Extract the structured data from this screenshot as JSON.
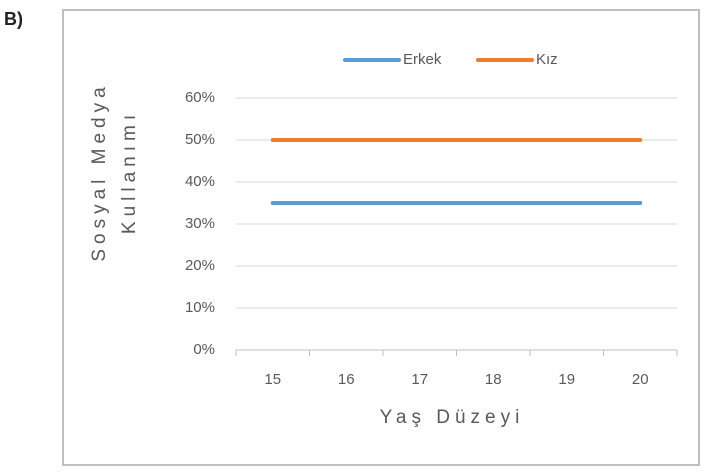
{
  "label": "B)",
  "chart_data": {
    "type": "line",
    "ylabel": [
      "Sosyal Medya",
      "Kullanımı"
    ],
    "xlabel": "Yaş Düzeyi",
    "categories": [
      "15",
      "16",
      "17",
      "18",
      "19",
      "20"
    ],
    "series": [
      {
        "name": "Erkek",
        "color": "#5b9bd5",
        "values": [
          35,
          35,
          35,
          35,
          35,
          35
        ]
      },
      {
        "name": "Kız",
        "color": "#ed7d31",
        "values": [
          50,
          50,
          50,
          50,
          50,
          50
        ]
      }
    ],
    "ylim": [
      0,
      60
    ],
    "yticks": [
      {
        "value": 0,
        "label": "0%"
      },
      {
        "value": 10,
        "label": "10%"
      },
      {
        "value": 20,
        "label": "20%"
      },
      {
        "value": 30,
        "label": "30%"
      },
      {
        "value": 40,
        "label": "40%"
      },
      {
        "value": 50,
        "label": "50%"
      },
      {
        "value": 60,
        "label": "60%"
      }
    ],
    "grid": true,
    "legend": "top"
  }
}
